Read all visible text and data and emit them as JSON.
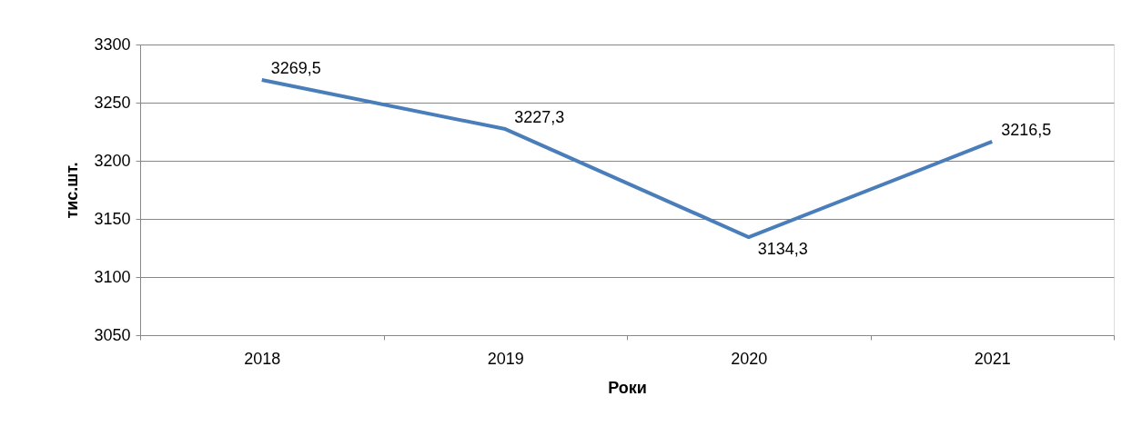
{
  "chart_data": {
    "type": "line",
    "xlabel": "Роки",
    "ylabel": "тис.шт.",
    "categories": [
      "2018",
      "2019",
      "2020",
      "2021"
    ],
    "series": [
      {
        "color": "#4a7ebb",
        "values": [
          3269.5,
          3227.3,
          3134.3,
          3216.5
        ],
        "value_labels": [
          "3269,5",
          "3227,3",
          "3134,3",
          "3216,5"
        ]
      }
    ],
    "ylim": [
      3050,
      3300
    ],
    "yticks": [
      3050,
      3100,
      3150,
      3200,
      3250,
      3300
    ],
    "grid": "y",
    "marker": "none",
    "line_style": "solid"
  }
}
